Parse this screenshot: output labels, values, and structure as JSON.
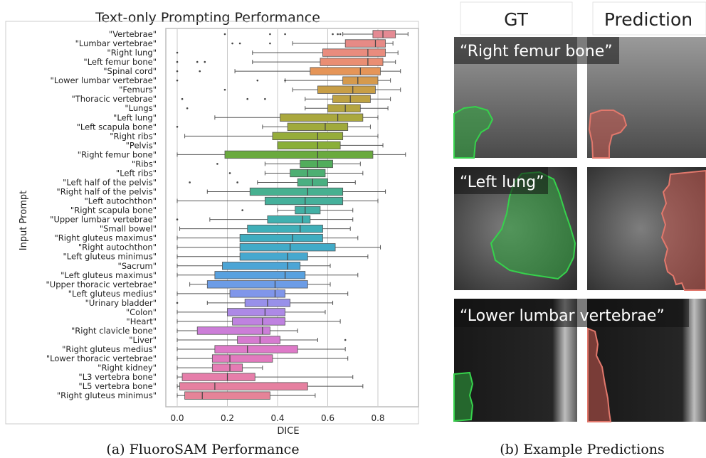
{
  "chart_data": {
    "type": "box",
    "title": "Text-only Prompting Performance",
    "xlabel": "DICE",
    "ylabel": "Input Prompt",
    "xlim": [
      -0.05,
      1.0
    ],
    "xticks": [
      "0.0",
      "0.2",
      "0.4",
      "0.6",
      "0.8"
    ],
    "grid": "vertical",
    "caption": "(a) FluoroSAM Performance",
    "categories": [
      "\"Vertebrae\"",
      "\"Lumbar vertebrae\"",
      "\"Right lung\"",
      "\"Left femur bone\"",
      "\"Spinal cord\"",
      "\"Lower lumbar vertebrae\"",
      "\"Femurs\"",
      "\"Thoracic vertebrae\"",
      "\"Lungs\"",
      "\"Left lung\"",
      "\"Left scapula bone\"",
      "\"Right ribs\"",
      "\"Pelvis\"",
      "\"Right femur bone\"",
      "\"Ribs\"",
      "\"Left ribs\"",
      "\"Left half of the pelvis\"",
      "\"Right half of the pelvis\"",
      "\"Left autochthon\"",
      "\"Right scapula bone\"",
      "\"Upper lumbar vertebrae\"",
      "\"Small bowel\"",
      "\"Right gluteus maximus\"",
      "\"Right autochthon\"",
      "\"Left gluteus minimus\"",
      "\"Sacrum\"",
      "\"Left gluteus maximus\"",
      "\"Upper thoracic vertebrae\"",
      "\"Left gluteus medius\"",
      "\"Urinary bladder\"",
      "\"Colon\"",
      "\"Heart\"",
      "\"Right clavicle bone\"",
      "\"Liver\"",
      "\"Right gluteus medius\"",
      "\"Lower thoracic vertebrae\"",
      "\"Right kidney\"",
      "\"L3 vertebra bone\"",
      "\"L5 vertebra bone\"",
      "\"Right gluteus minimus\""
    ],
    "boxes": [
      {
        "whislo": 0.66,
        "q1": 0.78,
        "med": 0.82,
        "q3": 0.87,
        "whishi": 0.92,
        "fliers": [
          0.19,
          0.37,
          0.43,
          0.62,
          0.64,
          0.65
        ],
        "color": "#e48a93"
      },
      {
        "whislo": 0.46,
        "q1": 0.67,
        "med": 0.79,
        "q3": 0.83,
        "whishi": 0.86,
        "fliers": [
          0.22,
          0.25,
          0.37
        ],
        "color": "#e68a86"
      },
      {
        "whislo": 0.3,
        "q1": 0.58,
        "med": 0.76,
        "q3": 0.83,
        "whishi": 0.88,
        "fliers": [
          0.0
        ],
        "color": "#e98c7e"
      },
      {
        "whislo": 0.3,
        "q1": 0.57,
        "med": 0.76,
        "q3": 0.82,
        "whishi": 0.87,
        "fliers": [
          0.0,
          0.08,
          0.11
        ],
        "color": "#ea8e73"
      },
      {
        "whislo": 0.23,
        "q1": 0.53,
        "med": 0.73,
        "q3": 0.81,
        "whishi": 0.89,
        "fliers": [
          0.0,
          0.09
        ],
        "color": "#e59558"
      },
      {
        "whislo": 0.43,
        "q1": 0.66,
        "med": 0.72,
        "q3": 0.8,
        "whishi": 0.85,
        "fliers": [
          0.0,
          0.32,
          0.43
        ],
        "color": "#d59a4d"
      },
      {
        "whislo": 0.46,
        "q1": 0.56,
        "med": 0.7,
        "q3": 0.79,
        "whishi": 0.89,
        "fliers": [
          0.19
        ],
        "color": "#c89e46"
      },
      {
        "whislo": 0.51,
        "q1": 0.62,
        "med": 0.69,
        "q3": 0.77,
        "whishi": 0.85,
        "fliers": [
          0.02,
          0.28,
          0.35
        ],
        "color": "#bea243"
      },
      {
        "whislo": 0.51,
        "q1": 0.6,
        "med": 0.67,
        "q3": 0.73,
        "whishi": 0.84,
        "fliers": [
          0.04
        ],
        "color": "#b4a540"
      },
      {
        "whislo": 0.15,
        "q1": 0.41,
        "med": 0.64,
        "q3": 0.74,
        "whishi": 0.8,
        "fliers": [],
        "color": "#aaa83e"
      },
      {
        "whislo": 0.34,
        "q1": 0.44,
        "med": 0.59,
        "q3": 0.68,
        "whishi": 0.77,
        "fliers": [
          0.0
        ],
        "color": "#a0aa3c"
      },
      {
        "whislo": 0.03,
        "q1": 0.38,
        "med": 0.56,
        "q3": 0.66,
        "whishi": 0.8,
        "fliers": [],
        "color": "#96ad3a"
      },
      {
        "whislo": 0.4,
        "q1": 0.4,
        "med": 0.56,
        "q3": 0.65,
        "whishi": 0.82,
        "fliers": [],
        "color": "#8aaf38"
      },
      {
        "whislo": 0.0,
        "q1": 0.19,
        "med": 0.56,
        "q3": 0.78,
        "whishi": 0.91,
        "fliers": [],
        "color": "#6aaa3e"
      },
      {
        "whislo": 0.35,
        "q1": 0.49,
        "med": 0.56,
        "q3": 0.62,
        "whishi": 0.73,
        "fliers": [
          0.16
        ],
        "color": "#52ad5c"
      },
      {
        "whislo": 0.35,
        "q1": 0.45,
        "med": 0.52,
        "q3": 0.59,
        "whishi": 0.74,
        "fliers": [
          0.21
        ],
        "color": "#4daf72"
      },
      {
        "whislo": 0.32,
        "q1": 0.48,
        "med": 0.54,
        "q3": 0.6,
        "whishi": 0.71,
        "fliers": [
          0.05,
          0.24
        ],
        "color": "#4aaf81"
      },
      {
        "whislo": 0.12,
        "q1": 0.29,
        "med": 0.52,
        "q3": 0.66,
        "whishi": 0.83,
        "fliers": [],
        "color": "#47b090"
      },
      {
        "whislo": 0.0,
        "q1": 0.35,
        "med": 0.51,
        "q3": 0.66,
        "whishi": 0.8,
        "fliers": [],
        "color": "#45b09b"
      },
      {
        "whislo": 0.4,
        "q1": 0.47,
        "med": 0.51,
        "q3": 0.57,
        "whishi": 0.7,
        "fliers": [
          0.26
        ],
        "color": "#43b0a5"
      },
      {
        "whislo": 0.13,
        "q1": 0.36,
        "med": 0.5,
        "q3": 0.53,
        "whishi": 0.7,
        "fliers": [
          0.0
        ],
        "color": "#41b0af"
      },
      {
        "whislo": 0.01,
        "q1": 0.28,
        "med": 0.49,
        "q3": 0.58,
        "whishi": 0.69,
        "fliers": [],
        "color": "#40afb8"
      },
      {
        "whislo": 0.0,
        "q1": 0.25,
        "med": 0.46,
        "q3": 0.58,
        "whishi": 0.72,
        "fliers": [],
        "color": "#40adc0"
      },
      {
        "whislo": 0.0,
        "q1": 0.25,
        "med": 0.45,
        "q3": 0.63,
        "whishi": 0.81,
        "fliers": [],
        "color": "#42abc8"
      },
      {
        "whislo": 0.0,
        "q1": 0.25,
        "med": 0.44,
        "q3": 0.52,
        "whishi": 0.76,
        "fliers": [],
        "color": "#46a8cf"
      },
      {
        "whislo": 0.0,
        "q1": 0.18,
        "med": 0.44,
        "q3": 0.49,
        "whishi": 0.61,
        "fliers": [],
        "color": "#4ca5d6"
      },
      {
        "whislo": 0.0,
        "q1": 0.15,
        "med": 0.43,
        "q3": 0.51,
        "whishi": 0.72,
        "fliers": [],
        "color": "#58a1df"
      },
      {
        "whislo": 0.05,
        "q1": 0.12,
        "med": 0.39,
        "q3": 0.52,
        "whishi": 0.61,
        "fliers": [],
        "color": "#6c9ce6"
      },
      {
        "whislo": 0.0,
        "q1": 0.21,
        "med": 0.39,
        "q3": 0.43,
        "whishi": 0.68,
        "fliers": [],
        "color": "#8096ea"
      },
      {
        "whislo": 0.12,
        "q1": 0.27,
        "med": 0.36,
        "q3": 0.45,
        "whishi": 0.62,
        "fliers": [
          0.0
        ],
        "color": "#9890ea"
      },
      {
        "whislo": 0.0,
        "q1": 0.2,
        "med": 0.35,
        "q3": 0.43,
        "whishi": 0.59,
        "fliers": [],
        "color": "#ad89e6"
      },
      {
        "whislo": 0.0,
        "q1": 0.22,
        "med": 0.34,
        "q3": 0.43,
        "whishi": 0.65,
        "fliers": [],
        "color": "#bf82e0"
      },
      {
        "whislo": 0.0,
        "q1": 0.08,
        "med": 0.34,
        "q3": 0.37,
        "whishi": 0.48,
        "fliers": [],
        "color": "#cc7ed8"
      },
      {
        "whislo": 0.0,
        "q1": 0.24,
        "med": 0.33,
        "q3": 0.41,
        "whishi": 0.56,
        "fliers": [
          0.67
        ],
        "color": "#d67bd0"
      },
      {
        "whislo": 0.0,
        "q1": 0.15,
        "med": 0.28,
        "q3": 0.48,
        "whishi": 0.67,
        "fliers": [],
        "color": "#de7ac8"
      },
      {
        "whislo": 0.0,
        "q1": 0.14,
        "med": 0.21,
        "q3": 0.38,
        "whishi": 0.68,
        "fliers": [],
        "color": "#e27bbe"
      },
      {
        "whislo": 0.0,
        "q1": 0.14,
        "med": 0.21,
        "q3": 0.26,
        "whishi": 0.34,
        "fliers": [],
        "color": "#e57cb4"
      },
      {
        "whislo": 0.0,
        "q1": 0.02,
        "med": 0.2,
        "q3": 0.31,
        "whishi": 0.7,
        "fliers": [],
        "color": "#e67eaa"
      },
      {
        "whislo": 0.0,
        "q1": 0.01,
        "med": 0.15,
        "q3": 0.52,
        "whishi": 0.74,
        "fliers": [],
        "color": "#e680a0"
      },
      {
        "whislo": 0.0,
        "q1": 0.03,
        "med": 0.1,
        "q3": 0.37,
        "whishi": 0.55,
        "fliers": [],
        "color": "#e58398"
      }
    ]
  },
  "predictions": {
    "caption": "(b) Example Predictions",
    "col_gt": "GT",
    "col_pred": "Prediction",
    "rows": [
      {
        "prompt": "“Right femur bone”"
      },
      {
        "prompt": "“Left lung”"
      },
      {
        "prompt": "“Lower lumbar vertebrae”"
      }
    ],
    "gt_color": "#33c24a",
    "pred_color": "#d9675e"
  }
}
